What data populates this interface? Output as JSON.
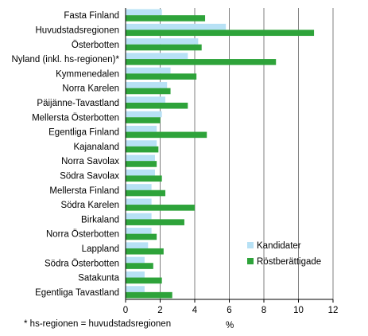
{
  "chart_data": {
    "type": "bar",
    "orientation": "horizontal",
    "categories": [
      "Fasta Finland",
      "Huvudstadsregionen",
      "Österbotten",
      "Nyland (inkl. hs-regionen)*",
      "Kymmenedalen",
      "Norra Karelen",
      "Päijänne-Tavastland",
      "Mellersta Österbotten",
      "Egentliga Finland",
      "Kajanaland",
      "Norra Savolax",
      "Södra Savolax",
      "Mellersta Finland",
      "Södra Karelen",
      "Birkaland",
      "Norra Österbotten",
      "Lappland",
      "Södra Österbotten",
      "Satakunta",
      "Egentliga Tavastland"
    ],
    "series": [
      {
        "name": "Kandidater",
        "color": "#b7e1f5",
        "values": [
          2.1,
          5.8,
          4.2,
          3.6,
          2.6,
          2.4,
          2.3,
          2.1,
          1.8,
          1.8,
          1.7,
          1.7,
          1.5,
          1.5,
          1.5,
          1.5,
          1.3,
          1.1,
          1.1,
          1.1
        ]
      },
      {
        "name": "Röstberättigade",
        "color": "#2ea33a",
        "values": [
          4.6,
          10.9,
          4.4,
          8.7,
          4.1,
          2.6,
          3.6,
          2.0,
          4.7,
          1.9,
          1.8,
          2.1,
          2.3,
          4.0,
          3.4,
          1.8,
          2.2,
          1.6,
          2.1,
          2.7
        ]
      }
    ],
    "xlim": [
      0,
      12
    ],
    "xticks": [
      "0",
      "2",
      "4",
      "6",
      "8",
      "10",
      "12"
    ],
    "xlabel": "%",
    "grid": "vertical",
    "legend_position": "bottom-right",
    "footnote": "* hs-regionen = huvudstadsregionen"
  }
}
